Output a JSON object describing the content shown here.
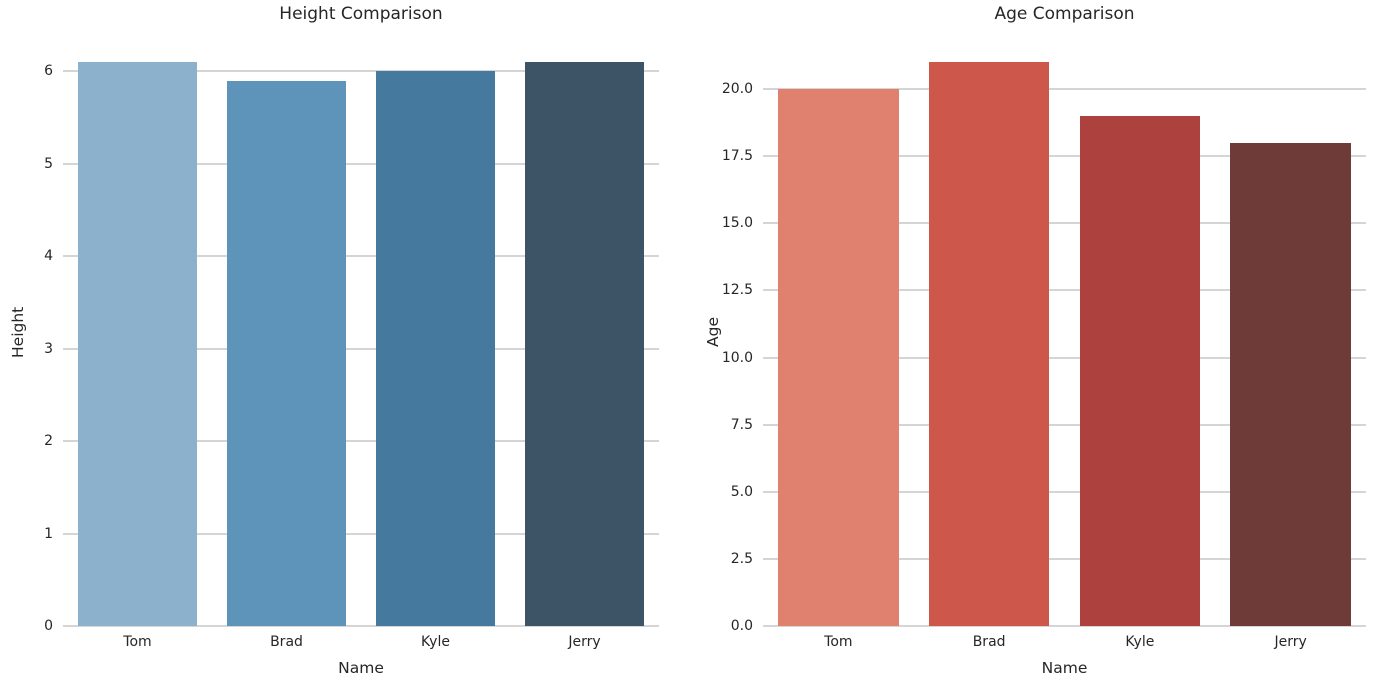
{
  "figure": {
    "background": "#ffffff",
    "grid_color": "#d5d5d5",
    "text_color": "#262626"
  },
  "chart_data": [
    {
      "type": "bar",
      "title": "Height Comparison",
      "xlabel": "Name",
      "ylabel": "Height",
      "categories": [
        "Tom",
        "Brad",
        "Kyle",
        "Jerry"
      ],
      "values": [
        6.1,
        5.9,
        6.0,
        6.1
      ],
      "bar_colors": [
        "#8cb1cd",
        "#5e93ba",
        "#45799d",
        "#3d5366"
      ],
      "ytick_values": [
        0,
        1,
        2,
        3,
        4,
        5,
        6
      ],
      "ytick_labels": [
        "0",
        "1",
        "2",
        "3",
        "4",
        "5",
        "6"
      ],
      "ylim": [
        0,
        6.36
      ],
      "grid": "horizontal",
      "legend_position": "none"
    },
    {
      "type": "bar",
      "title": "Age Comparison",
      "xlabel": "Name",
      "ylabel": "Age",
      "categories": [
        "Tom",
        "Brad",
        "Kyle",
        "Jerry"
      ],
      "values": [
        20,
        21,
        19,
        18
      ],
      "bar_colors": [
        "#e08170",
        "#cd574b",
        "#ad413d",
        "#6f3b38"
      ],
      "ytick_values": [
        0,
        2.5,
        5,
        7.5,
        10,
        12.5,
        15,
        17.5,
        20
      ],
      "ytick_labels": [
        "0.0",
        "2.5",
        "5.0",
        "7.5",
        "10.0",
        "12.5",
        "15.0",
        "17.5",
        "20.0"
      ],
      "ylim": [
        0,
        21.9
      ],
      "grid": "horizontal",
      "legend_position": "none"
    }
  ]
}
